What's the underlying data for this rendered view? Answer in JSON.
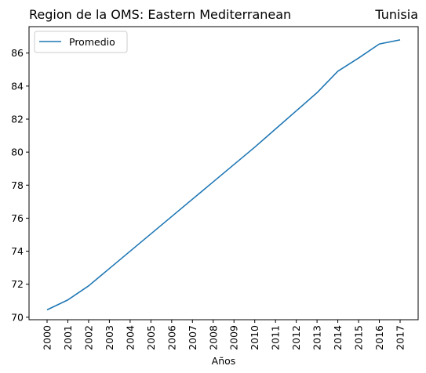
{
  "chart_data": {
    "type": "line",
    "title_left": "Region de la OMS: Eastern Mediterranean",
    "title_right": "Tunisia",
    "xlabel": "Años",
    "ylabel": "",
    "x": [
      "2000",
      "2001",
      "2002",
      "2003",
      "2004",
      "2005",
      "2006",
      "2007",
      "2008",
      "2009",
      "2010",
      "2011",
      "2012",
      "2013",
      "2014",
      "2015",
      "2016",
      "2017"
    ],
    "series": [
      {
        "name": "Promedio",
        "color": "#1f77b4",
        "values": [
          70.45,
          71.05,
          71.9,
          72.95,
          74.0,
          75.05,
          76.1,
          77.15,
          78.2,
          79.25,
          80.3,
          81.4,
          82.5,
          83.6,
          84.9,
          85.7,
          86.55,
          86.8
        ]
      }
    ],
    "yticks": [
      70,
      72,
      74,
      76,
      78,
      80,
      82,
      84,
      86
    ],
    "ylim": [
      69.85,
      87.6
    ],
    "grid": false,
    "legend_position": "upper-left"
  }
}
